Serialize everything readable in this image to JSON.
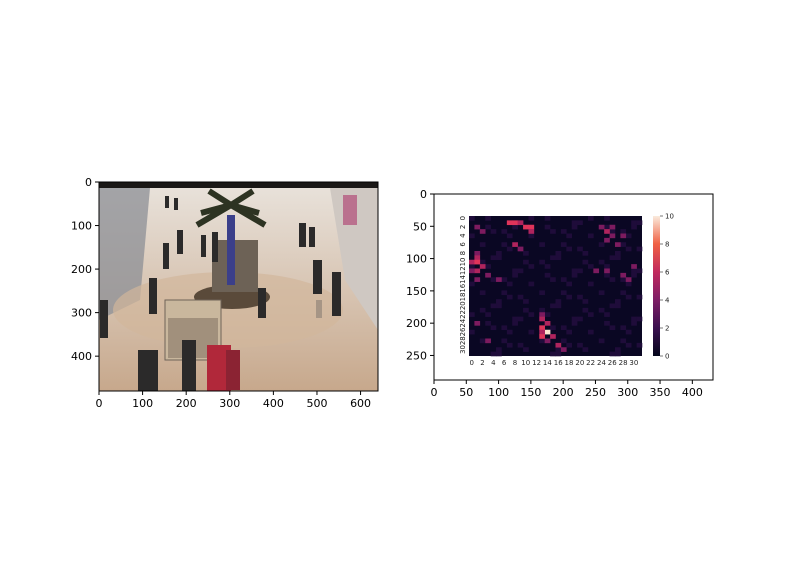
{
  "chart_data": [
    {
      "type": "image",
      "description_hint": "mall-crowd-photo",
      "xlim": [
        0,
        640
      ],
      "ylim": [
        480,
        0
      ],
      "xticks": [
        0,
        100,
        200,
        300,
        400,
        500,
        600
      ],
      "yticks": [
        0,
        100,
        200,
        300,
        400
      ]
    },
    {
      "type": "heatmap",
      "outer_axes": {
        "xlim": [
          0,
          432
        ],
        "ylim": [
          288,
          0
        ],
        "xticks": [
          0,
          50,
          100,
          150,
          200,
          250,
          300,
          350,
          400
        ],
        "yticks": [
          0,
          50,
          100,
          150,
          200,
          250
        ]
      },
      "inner_x_ticks": [
        "0",
        "2",
        "4",
        "6",
        "8",
        "10",
        "12",
        "14",
        "16",
        "18",
        "20",
        "22",
        "24",
        "26",
        "28",
        "30"
      ],
      "inner_y_ticks": [
        "0",
        "2",
        "4",
        "6",
        "8",
        "10",
        "12",
        "14",
        "16",
        "18",
        "20",
        "22",
        "24",
        "26",
        "28",
        "30"
      ],
      "colorbar": {
        "min": 0,
        "max": 10,
        "ticks": [
          "0",
          "2",
          "4",
          "6",
          "8",
          "10"
        ]
      },
      "grid_size": [
        32,
        32
      ],
      "hot_cells": [
        {
          "row": 1,
          "col": 7,
          "v": 7
        },
        {
          "row": 1,
          "col": 8,
          "v": 6
        },
        {
          "row": 1,
          "col": 9,
          "v": 4
        },
        {
          "row": 2,
          "col": 10,
          "v": 6
        },
        {
          "row": 2,
          "col": 11,
          "v": 7
        },
        {
          "row": 3,
          "col": 11,
          "v": 5
        },
        {
          "row": 2,
          "col": 1,
          "v": 3
        },
        {
          "row": 3,
          "col": 2,
          "v": 3
        },
        {
          "row": 2,
          "col": 24,
          "v": 3
        },
        {
          "row": 3,
          "col": 25,
          "v": 4
        },
        {
          "row": 2,
          "col": 26,
          "v": 3
        },
        {
          "row": 4,
          "col": 26,
          "v": 3
        },
        {
          "row": 5,
          "col": 25,
          "v": 3
        },
        {
          "row": 4,
          "col": 28,
          "v": 3
        },
        {
          "row": 6,
          "col": 27,
          "v": 3
        },
        {
          "row": 6,
          "col": 8,
          "v": 4
        },
        {
          "row": 7,
          "col": 9,
          "v": 3
        },
        {
          "row": 8,
          "col": 1,
          "v": 3
        },
        {
          "row": 9,
          "col": 1,
          "v": 5
        },
        {
          "row": 10,
          "col": 0,
          "v": 5
        },
        {
          "row": 10,
          "col": 1,
          "v": 6
        },
        {
          "row": 11,
          "col": 2,
          "v": 5
        },
        {
          "row": 12,
          "col": 1,
          "v": 4
        },
        {
          "row": 12,
          "col": 0,
          "v": 3
        },
        {
          "row": 13,
          "col": 3,
          "v": 3
        },
        {
          "row": 14,
          "col": 1,
          "v": 3
        },
        {
          "row": 14,
          "col": 5,
          "v": 3
        },
        {
          "row": 12,
          "col": 23,
          "v": 3
        },
        {
          "row": 12,
          "col": 25,
          "v": 3
        },
        {
          "row": 13,
          "col": 28,
          "v": 3
        },
        {
          "row": 14,
          "col": 29,
          "v": 3
        },
        {
          "row": 11,
          "col": 30,
          "v": 3
        },
        {
          "row": 22,
          "col": 13,
          "v": 3
        },
        {
          "row": 23,
          "col": 13,
          "v": 4
        },
        {
          "row": 24,
          "col": 14,
          "v": 4
        },
        {
          "row": 25,
          "col": 13,
          "v": 6
        },
        {
          "row": 26,
          "col": 14,
          "v": 10
        },
        {
          "row": 26,
          "col": 13,
          "v": 5
        },
        {
          "row": 27,
          "col": 13,
          "v": 7
        },
        {
          "row": 27,
          "col": 15,
          "v": 4
        },
        {
          "row": 28,
          "col": 14,
          "v": 3
        },
        {
          "row": 29,
          "col": 16,
          "v": 4
        },
        {
          "row": 30,
          "col": 17,
          "v": 3
        },
        {
          "row": 24,
          "col": 1,
          "v": 3
        },
        {
          "row": 28,
          "col": 3,
          "v": 3
        }
      ],
      "colors": {
        "background": "#0a0723",
        "dark": "#1f0c3a",
        "mid": "#7d1b5f",
        "hot": "#e0345a",
        "peak": "#fbe3cf"
      }
    }
  ]
}
